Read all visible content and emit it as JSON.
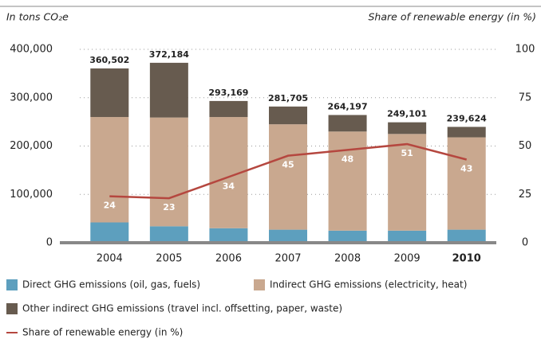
{
  "chart_data": {
    "type": "stacked_bar_line",
    "y_axis_label": "In tons CO₂e",
    "y2_axis_label": "Share of renewable energy (in %)",
    "categories": [
      "2004",
      "2005",
      "2006",
      "2007",
      "2008",
      "2009",
      "2010"
    ],
    "series": [
      {
        "name": "Direct GHG emissions (oil, gas, fuels)",
        "color": "#5d9fbe",
        "values": [
          42000,
          34000,
          30000,
          27000,
          25000,
          25000,
          27000
        ]
      },
      {
        "name": "Indirect GHG emissions (electricity, heat)",
        "color": "#c9a88f",
        "values": [
          218000,
          225000,
          230000,
          218000,
          205000,
          200000,
          191000
        ]
      },
      {
        "name": "Other indirect GHG emissions (travel incl. offsetting, paper, waste)",
        "color": "#675b4f",
        "values": [
          100502,
          113184,
          33169,
          36705,
          34197,
          24101,
          21624
        ]
      },
      {
        "name": "Share of renewable energy (in %)",
        "color": "#b5473f",
        "axis": "y2",
        "type": "line",
        "values": [
          24,
          23,
          34,
          45,
          48,
          51,
          43
        ]
      }
    ],
    "total_labels": [
      "360,502",
      "372,184",
      "293,169",
      "281,705",
      "264,197",
      "249,101",
      "239,624"
    ],
    "ylim": [
      0,
      400000
    ],
    "yticks": [
      0,
      {
        "value": 100000,
        "label": "100,000"
      },
      {
        "value": 200000,
        "label": "200,000"
      },
      {
        "value": 300000,
        "label": "300,000"
      },
      {
        "value": 400000,
        "label": "400,000"
      }
    ],
    "y2lim": [
      0,
      100
    ],
    "y2ticks": [
      0,
      25,
      50,
      75,
      100
    ],
    "grid": true
  }
}
